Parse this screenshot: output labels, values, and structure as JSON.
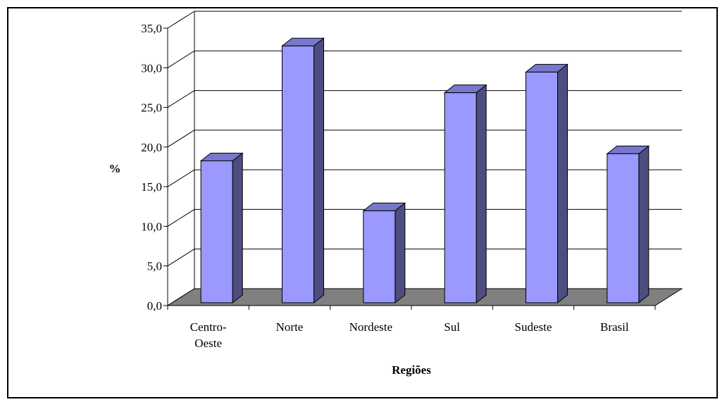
{
  "chart_data": {
    "type": "bar",
    "style": "3d-column",
    "title": "",
    "xlabel": "Regiões",
    "ylabel": "%",
    "categories": [
      "Centro-Oeste",
      "Norte",
      "Nordeste",
      "Sul",
      "Sudeste",
      "Brasil"
    ],
    "category_labels": [
      [
        "Centro-",
        "Oeste"
      ],
      [
        "Norte"
      ],
      [
        "Nordeste"
      ],
      [
        "Sul"
      ],
      [
        "Sudeste"
      ],
      [
        "Brasil"
      ]
    ],
    "values": [
      17.9,
      32.4,
      11.6,
      26.5,
      29.1,
      18.8
    ],
    "ylim": [
      0,
      35
    ],
    "yticks": [
      "0,0",
      "5,0",
      "10,0",
      "15,0",
      "20,0",
      "25,0",
      "30,0",
      "35,0"
    ],
    "grid": true,
    "legend": "none",
    "colors": {
      "bar_front": "#9999ff",
      "bar_side": "#4d4d80",
      "bar_top": "#7777cc",
      "floor": "#808080",
      "grid": "#000000"
    }
  }
}
